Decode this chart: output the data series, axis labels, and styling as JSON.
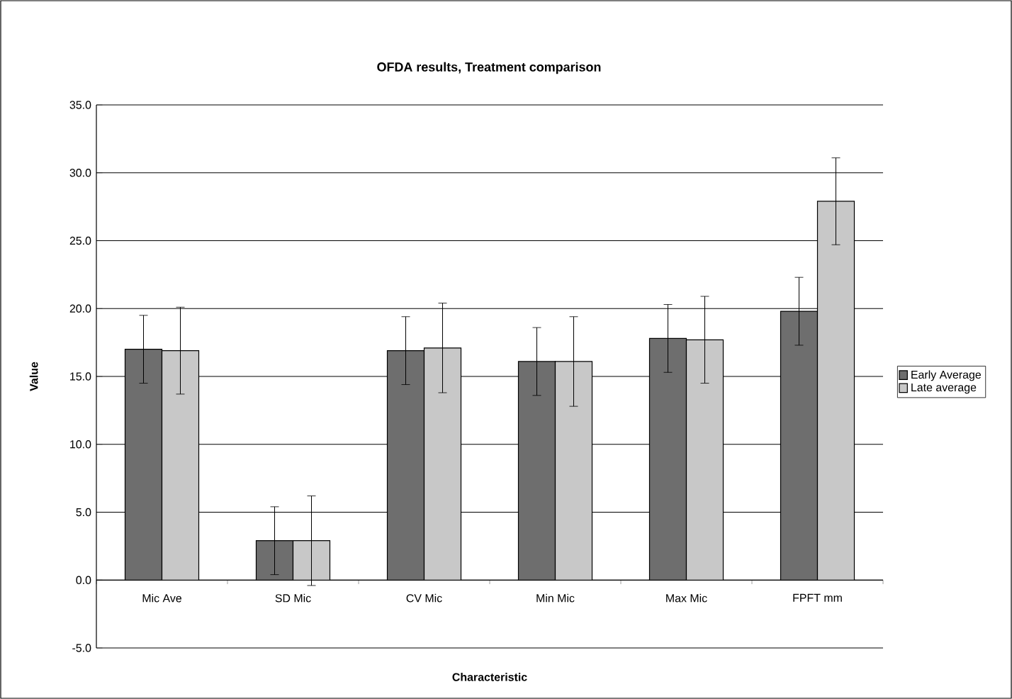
{
  "chart_data": {
    "type": "bar",
    "title": "OFDA results, Treatment comparison",
    "xlabel": "Characteristic",
    "ylabel": "Value",
    "categories": [
      "Mic Ave",
      "SD Mic",
      "CV Mic",
      "Min Mic",
      "Max Mic",
      "FPFT mm"
    ],
    "series": [
      {
        "name": "Early Average",
        "color": "#6e6e6e",
        "values": [
          17.0,
          2.9,
          16.9,
          16.1,
          17.8,
          19.8
        ],
        "errors": [
          2.5,
          2.5,
          2.5,
          2.5,
          2.5,
          2.5
        ]
      },
      {
        "name": "Late average",
        "color": "#c8c8c8",
        "values": [
          16.9,
          2.9,
          17.1,
          16.1,
          17.7,
          27.9
        ],
        "errors": [
          3.2,
          3.3,
          3.3,
          3.3,
          3.2,
          3.2
        ]
      }
    ],
    "ylim": [
      -5,
      35
    ],
    "yticks": [
      {
        "value": -5,
        "label": "-5.0"
      },
      {
        "value": 0,
        "label": "0.0"
      },
      {
        "value": 5,
        "label": "5.0"
      },
      {
        "value": 10,
        "label": "10.0"
      },
      {
        "value": 15,
        "label": "15.0"
      },
      {
        "value": 20,
        "label": "20.0"
      },
      {
        "value": 25,
        "label": "25.0"
      },
      {
        "value": 30,
        "label": "30.0"
      },
      {
        "value": 35,
        "label": "35.0"
      }
    ],
    "grid": "y",
    "legend": "right"
  }
}
